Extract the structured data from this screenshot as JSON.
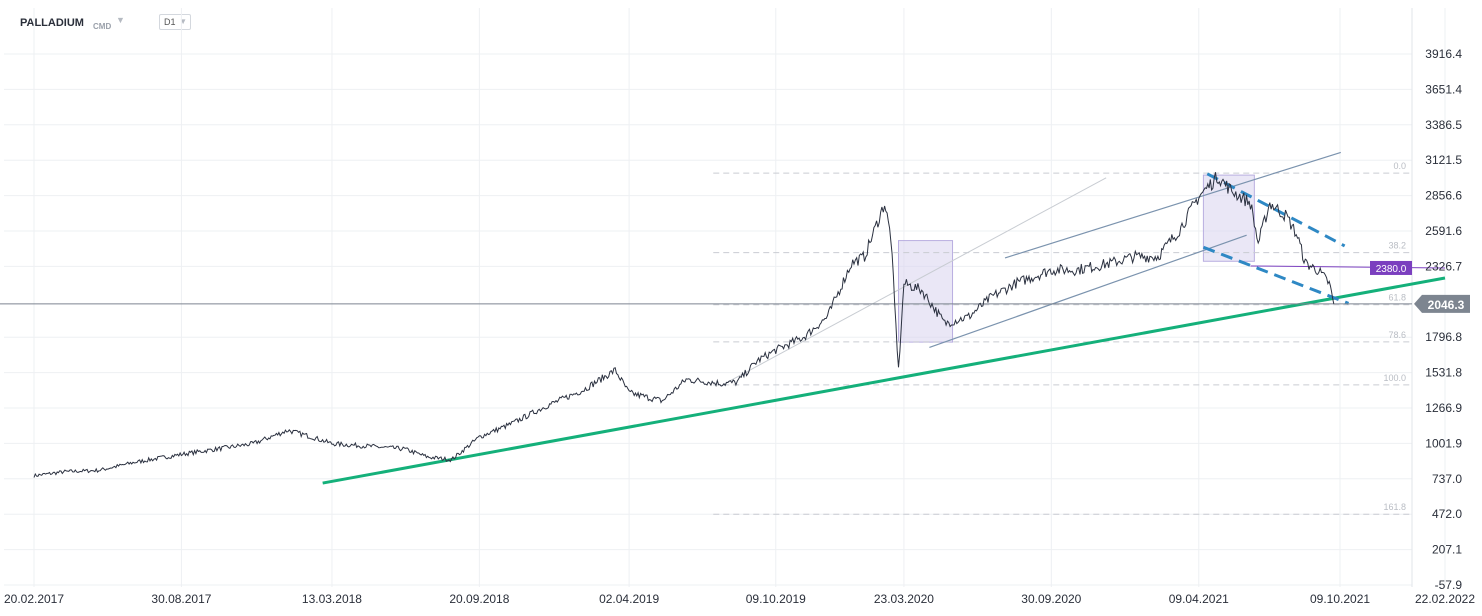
{
  "header": {
    "symbol": "PALLADIUM",
    "source": "CMD",
    "timeframe": "D1"
  },
  "colors": {
    "price_line": "#2b3140",
    "support_line": "#14b07a",
    "channel": "#7b93ae",
    "dashed_trend": "#2e88c4",
    "highlight_box": "#d9d3ef",
    "current_price_tag": "#7d8590",
    "level_tag": "#7b3fbf"
  },
  "chart_data": {
    "type": "line",
    "title": "",
    "xlabel": "",
    "ylabel": "",
    "x_ticks": [
      "20.02.2017",
      "30.08.2017",
      "13.03.2018",
      "20.09.2018",
      "02.04.2019",
      "09.10.2019",
      "23.03.2020",
      "30.09.2020",
      "09.04.2021",
      "09.10.2021",
      "22.02.2022"
    ],
    "y_ticks": [
      "3916.4",
      "3651.4",
      "3386.5",
      "3121.5",
      "2856.6",
      "2591.6",
      "2326.7",
      "1796.8",
      "1531.8",
      "1266.9",
      "1001.9",
      "737.0",
      "472.0",
      "207.1",
      "-57.9"
    ],
    "ylim": [
      -57.9,
      4100
    ],
    "series": [
      {
        "values": [
          [
            "2017-02-20",
            760
          ],
          [
            "2017-04-01",
            790
          ],
          [
            "2017-05-15",
            800
          ],
          [
            "2017-06-30",
            860
          ],
          [
            "2017-08-30",
            920
          ],
          [
            "2017-10-15",
            960
          ],
          [
            "2017-12-01",
            1000
          ],
          [
            "2018-01-15",
            1100
          ],
          [
            "2018-02-15",
            1050
          ],
          [
            "2018-03-13",
            1000
          ],
          [
            "2018-05-01",
            980
          ],
          [
            "2018-06-15",
            960
          ],
          [
            "2018-07-15",
            900
          ],
          [
            "2018-08-15",
            880
          ],
          [
            "2018-09-20",
            1050
          ],
          [
            "2018-11-01",
            1150
          ],
          [
            "2018-12-15",
            1280
          ],
          [
            "2019-02-01",
            1400
          ],
          [
            "2019-03-15",
            1550
          ],
          [
            "2019-04-02",
            1380
          ],
          [
            "2019-05-15",
            1320
          ],
          [
            "2019-06-15",
            1480
          ],
          [
            "2019-08-01",
            1450
          ],
          [
            "2019-08-20",
            1460
          ],
          [
            "2019-09-15",
            1620
          ],
          [
            "2019-10-09",
            1700
          ],
          [
            "2019-11-15",
            1800
          ],
          [
            "2019-12-15",
            1950
          ],
          [
            "2020-01-15",
            2350
          ],
          [
            "2020-02-01",
            2400
          ],
          [
            "2020-02-27",
            2800
          ],
          [
            "2020-03-06",
            2550
          ],
          [
            "2020-03-16",
            1550
          ],
          [
            "2020-03-23",
            2200
          ],
          [
            "2020-04-15",
            2150
          ],
          [
            "2020-05-15",
            1900
          ],
          [
            "2020-06-15",
            1950
          ],
          [
            "2020-07-15",
            2100
          ],
          [
            "2020-08-15",
            2200
          ],
          [
            "2020-09-30",
            2300
          ],
          [
            "2020-11-01",
            2300
          ],
          [
            "2020-12-15",
            2350
          ],
          [
            "2021-01-15",
            2400
          ],
          [
            "2021-02-15",
            2400
          ],
          [
            "2021-03-15",
            2600
          ],
          [
            "2021-04-09",
            2850
          ],
          [
            "2021-05-04",
            3000
          ],
          [
            "2021-05-20",
            2900
          ],
          [
            "2021-06-15",
            2800
          ],
          [
            "2021-06-25",
            2500
          ],
          [
            "2021-07-10",
            2800
          ],
          [
            "2021-08-01",
            2700
          ],
          [
            "2021-08-15",
            2550
          ],
          [
            "2021-08-25",
            2350
          ],
          [
            "2021-09-10",
            2300
          ],
          [
            "2021-09-25",
            2200
          ],
          [
            "2021-10-01",
            2046.3
          ]
        ]
      }
    ],
    "current_price": "2046.3",
    "level_tag": "2380.0",
    "fibonacci_levels": [
      "0.0",
      "38.2",
      "61.8",
      "78.6",
      "100.0",
      "161.8"
    ],
    "fibonacci_values": [
      3025,
      2430,
      2040,
      1762,
      1440,
      472
    ],
    "support_line": [
      [
        "2018-03-01",
        705
      ],
      [
        "2022-02-22",
        2240
      ]
    ],
    "channel_upper": [
      [
        "2020-08-01",
        2390
      ],
      [
        "2021-10-10",
        3180
      ]
    ],
    "channel_lower": [
      [
        "2020-04-25",
        1720
      ],
      [
        "2021-06-10",
        2560
      ]
    ],
    "faint_line": [
      [
        "2019-08-01",
        1440
      ],
      [
        "2020-12-10",
        2990
      ]
    ],
    "dashed_upper": [
      [
        "2021-04-20",
        3020
      ],
      [
        "2021-10-15",
        2480
      ]
    ],
    "dashed_lower": [
      [
        "2021-04-15",
        2470
      ],
      [
        "2021-10-20",
        2050
      ]
    ],
    "level_segment": [
      [
        "2021-06-15",
        2330
      ],
      [
        "2022-02-22",
        2315
      ]
    ],
    "highlight_boxes": [
      {
        "x0": "2020-03-16",
        "x1": "2020-05-25",
        "y0": 1760,
        "y1": 2520
      },
      {
        "x0": "2021-04-15",
        "x1": "2021-06-20",
        "y0": 2365,
        "y1": 3010
      }
    ],
    "grid": true
  }
}
